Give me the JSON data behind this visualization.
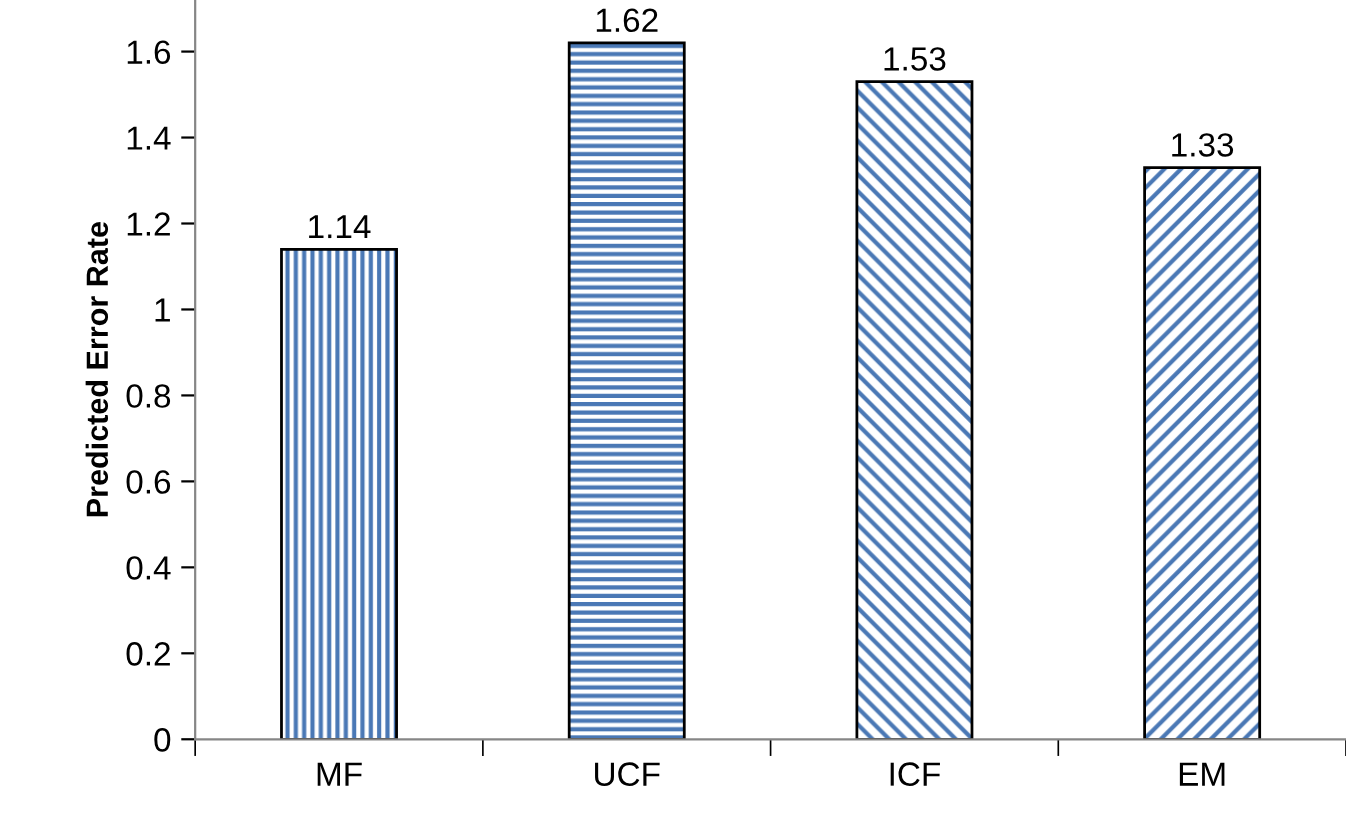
{
  "chart_data": {
    "type": "bar",
    "ylabel": "Predicted Error Rate",
    "categories": [
      "MF",
      "UCF",
      "ICF",
      "EM"
    ],
    "values": [
      1.14,
      1.62,
      1.53,
      1.33
    ],
    "color": "#4a78b5",
    "ylim": [
      0,
      1.72
    ],
    "yticks": [
      0,
      0.2,
      0.4,
      0.6,
      0.8,
      1,
      1.2,
      1.4,
      1.6
    ],
    "data_labels": true,
    "grid": false
  }
}
